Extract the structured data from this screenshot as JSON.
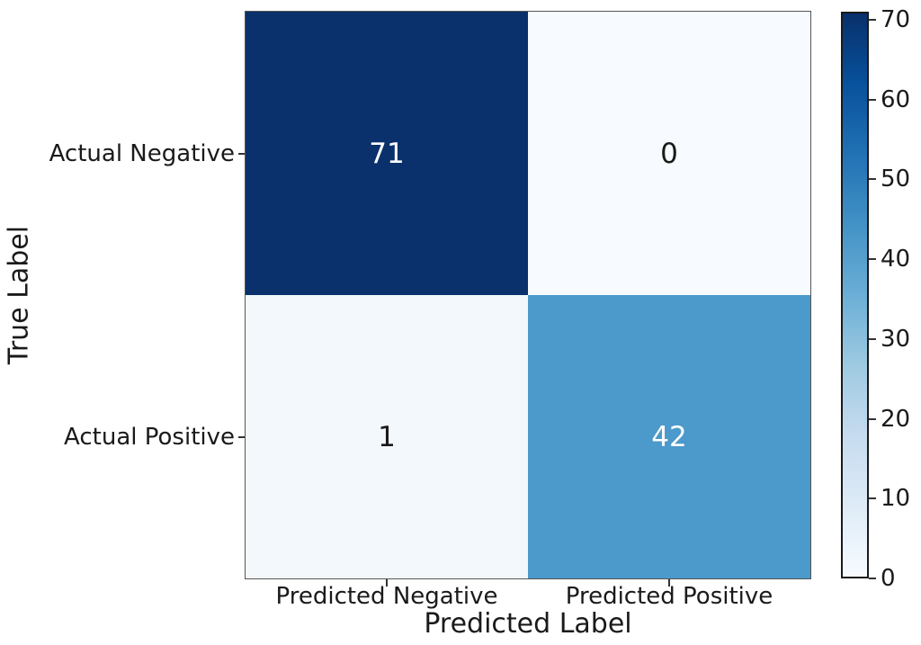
{
  "chart_data": {
    "type": "heatmap",
    "title": "",
    "xlabel": "Predicted Label",
    "ylabel": "True Label",
    "x_categories": [
      "Predicted Negative",
      "Predicted Positive"
    ],
    "y_categories": [
      "Actual Negative",
      "Actual Positive"
    ],
    "matrix": [
      [
        71,
        0
      ],
      [
        1,
        42
      ]
    ],
    "colormap": "Blues",
    "vmin": 0,
    "vmax": 71,
    "colorbar_ticks": [
      0,
      10,
      20,
      30,
      40,
      50,
      60,
      70
    ],
    "legend_position": "right-colorbar",
    "grid": false,
    "annotated": true
  },
  "colors": {
    "cell_bg": [
      [
        "#0a316b",
        "#f7fbff"
      ],
      [
        "#f3f8fd",
        "#4c99cb"
      ]
    ],
    "cell_fg": [
      [
        "#ffffff",
        "#1a1a1a"
      ],
      [
        "#1a1a1a",
        "#ffffff"
      ]
    ],
    "colorbar_gradient": [
      "#f7fbff",
      "#deebf7",
      "#c6dbef",
      "#9ecae1",
      "#6baed6",
      "#4292c6",
      "#2171b5",
      "#08519c",
      "#08306b"
    ],
    "background": "#ffffff"
  }
}
